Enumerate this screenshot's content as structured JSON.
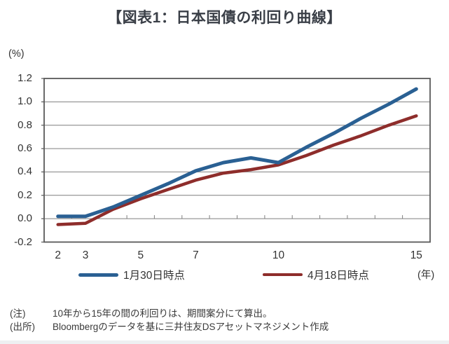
{
  "title": "【図表1：日本国債の利回り曲線】",
  "y_axis": {
    "unit_label": "(%)",
    "tick_labels": [
      "1.2",
      "1.0",
      "0.8",
      "0.6",
      "0.4",
      "0.2",
      "0.0",
      "-0.2"
    ]
  },
  "x_axis": {
    "unit_label": "(年)",
    "labeled_years": [
      2,
      3,
      5,
      7,
      10,
      15
    ]
  },
  "legend": {
    "items": [
      {
        "label": "1月30日時点",
        "color": "#2a6093"
      },
      {
        "label": "4月18日時点",
        "color": "#8e2d2b"
      }
    ]
  },
  "notes": {
    "note_label": "(注)",
    "note_text": "10年から15年の間の利回りは、期間案分にて算出。",
    "source_label": "(出所)",
    "source_text": "Bloombergのデータを基に三井住友DSアセットマネジメント作成"
  },
  "chart_data": {
    "type": "line",
    "title": "【図表1：日本国債の利回り曲線】",
    "xlabel": "(年)",
    "ylabel": "(%)",
    "x": [
      2,
      3,
      4,
      5,
      6,
      7,
      8,
      9,
      10,
      11,
      12,
      13,
      14,
      15
    ],
    "series": [
      {
        "name": "1月30日時点",
        "color": "#2a6093",
        "values": [
          0.02,
          0.02,
          0.1,
          0.2,
          0.3,
          0.41,
          0.48,
          0.52,
          0.48,
          0.61,
          0.73,
          0.86,
          0.98,
          1.11
        ]
      },
      {
        "name": "4月18日時点",
        "color": "#8e2d2b",
        "values": [
          -0.05,
          -0.04,
          0.08,
          0.17,
          0.25,
          0.33,
          0.39,
          0.42,
          0.46,
          0.54,
          0.63,
          0.71,
          0.8,
          0.88
        ]
      }
    ],
    "ylim": [
      -0.2,
      1.2
    ],
    "x_axis_type": "category, one category per year from 2 to 15, labels shown only at 2/3/5/7/10/15",
    "grid": "horizontal gridlines every 0.2; tick marks on the 0.0 line at category boundaries",
    "legend_position": "bottom",
    "annotation": "yields between 10y and 15y are linearly interpolated (期間案分)"
  }
}
